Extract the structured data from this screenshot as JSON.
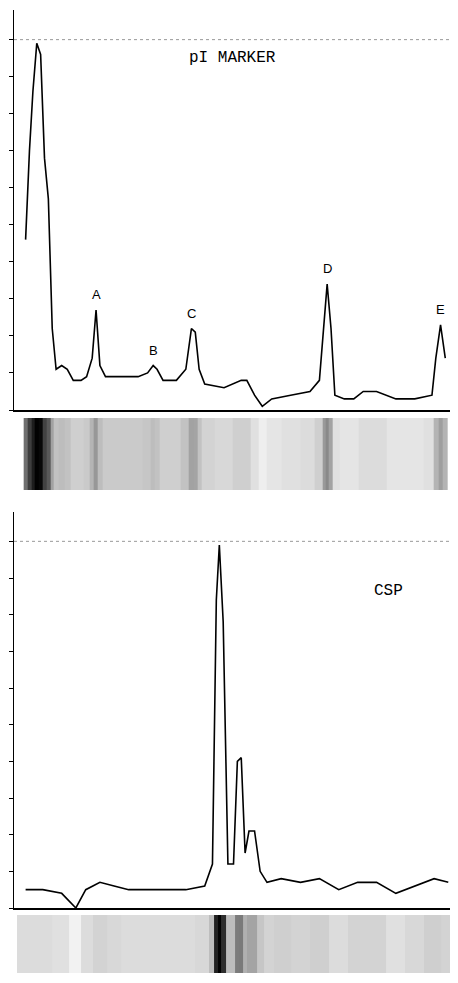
{
  "chart_data": [
    {
      "type": "line",
      "title": "pI MARKER",
      "color": "#000000",
      "tick_labels": false,
      "xlim": [
        0,
        101.5
      ],
      "ylim": [
        0,
        108
      ],
      "yticks": [
        0,
        10,
        20,
        30,
        40,
        50,
        60,
        70,
        80,
        90,
        100
      ],
      "full_scale": 100,
      "x": [
        2.7,
        3.6,
        4.4,
        5.3,
        6.2,
        7.1,
        8.0,
        8.9,
        9.8,
        11.1,
        12.4,
        13.8,
        15.6,
        16.9,
        18.2,
        19.1,
        20.0,
        21.3,
        24.4,
        28.9,
        31.1,
        32.4,
        33.3,
        34.7,
        37.8,
        40.0,
        41.3,
        42.2,
        43.1,
        44.4,
        48.9,
        52.9,
        54.2,
        56.0,
        57.8,
        60.0,
        64.4,
        68.9,
        71.1,
        72.4,
        72.9,
        73.8,
        74.7,
        76.9,
        79.1,
        81.3,
        84.4,
        88.9,
        93.3,
        97.3,
        98.2,
        99.3,
        100.4
      ],
      "values": [
        46,
        70,
        86,
        99,
        96,
        68,
        57,
        22,
        11,
        12,
        11,
        8,
        8,
        9,
        14,
        27,
        12,
        9,
        9,
        9,
        10,
        12,
        11,
        8,
        8,
        11,
        22,
        21,
        11,
        7,
        6,
        8,
        8,
        4,
        1,
        3,
        4,
        5,
        8,
        26,
        34,
        22,
        4,
        3,
        3,
        5,
        5,
        3,
        3,
        4,
        14,
        23,
        14
      ],
      "annotations": [
        {
          "text": "A",
          "x": 19.1,
          "y": 27
        },
        {
          "text": "B",
          "x": 32.4,
          "y": 12
        },
        {
          "text": "C",
          "x": 41.3,
          "y": 22
        },
        {
          "text": "D",
          "x": 72.9,
          "y": 34
        },
        {
          "text": "E",
          "x": 99.3,
          "y": 23
        }
      ]
    },
    {
      "type": "line",
      "title": "CSP",
      "color": "#000000",
      "tick_labels": false,
      "xlim": [
        0,
        101.5
      ],
      "ylim": [
        0,
        108
      ],
      "yticks": [
        0,
        10,
        20,
        30,
        40,
        50,
        60,
        70,
        80,
        90,
        100
      ],
      "full_scale": 100,
      "x": [
        2.7,
        6.7,
        11.1,
        14.4,
        16.7,
        20.0,
        23.3,
        26.7,
        31.1,
        35.6,
        40.0,
        44.4,
        46.2,
        47.1,
        47.8,
        48.7,
        49.8,
        51.1,
        52.0,
        52.9,
        53.8,
        54.7,
        56.0,
        57.3,
        58.9,
        62.2,
        66.7,
        71.1,
        75.6,
        80.0,
        84.4,
        88.9,
        93.3,
        97.8,
        101.1
      ],
      "values": [
        5,
        5,
        4,
        0,
        5,
        7,
        6,
        5,
        5,
        5,
        5,
        6,
        12,
        84,
        99,
        78,
        12,
        12,
        40,
        41,
        15,
        21,
        21,
        10,
        7,
        8,
        7,
        8,
        5,
        7,
        7,
        4,
        6,
        8,
        7
      ],
      "annotations": []
    }
  ]
}
